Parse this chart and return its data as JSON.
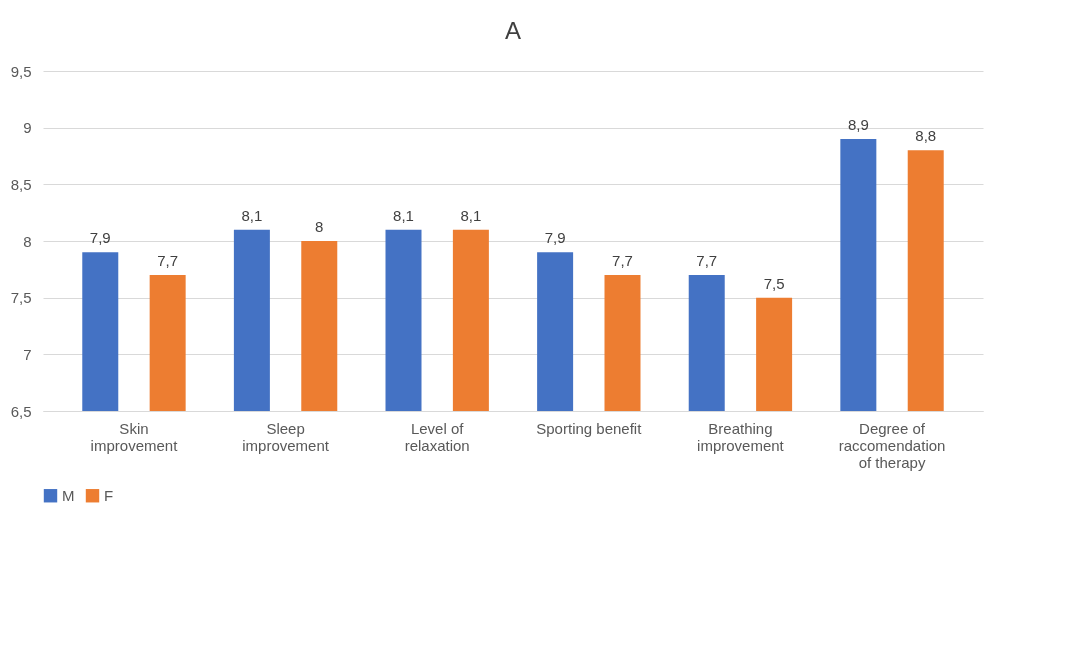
{
  "chart_data": {
    "type": "bar",
    "title": "A",
    "categories": [
      "Skin improvement",
      "Sleep improvement",
      "Level of relaxation",
      "Sporting benefit",
      "Breathing improvement",
      "Degree of raccomendation of therapy"
    ],
    "series": [
      {
        "name": "M",
        "color": "#4472c4",
        "values": [
          7.9,
          8.1,
          8.1,
          7.9,
          7.7,
          8.9
        ],
        "value_labels": [
          "7,9",
          "8,1",
          "8,1",
          "7,9",
          "7,7",
          "8,9"
        ]
      },
      {
        "name": "F",
        "color": "#ed7d31",
        "values": [
          7.7,
          8.0,
          8.1,
          7.7,
          7.5,
          8.8
        ],
        "value_labels": [
          "7,7",
          "8",
          "8,1",
          "7,7",
          "7,5",
          "8,8"
        ]
      }
    ],
    "ylim": [
      6.5,
      9.5
    ],
    "yticks": [
      {
        "value": 6.5,
        "label": "6,5"
      },
      7,
      {
        "value": 7.5,
        "label": "7,5"
      },
      8,
      {
        "value": 8.5,
        "label": "8,5"
      },
      9,
      {
        "value": 9.5,
        "label": "9,5"
      }
    ],
    "grid": "y",
    "legend": "bottom"
  }
}
